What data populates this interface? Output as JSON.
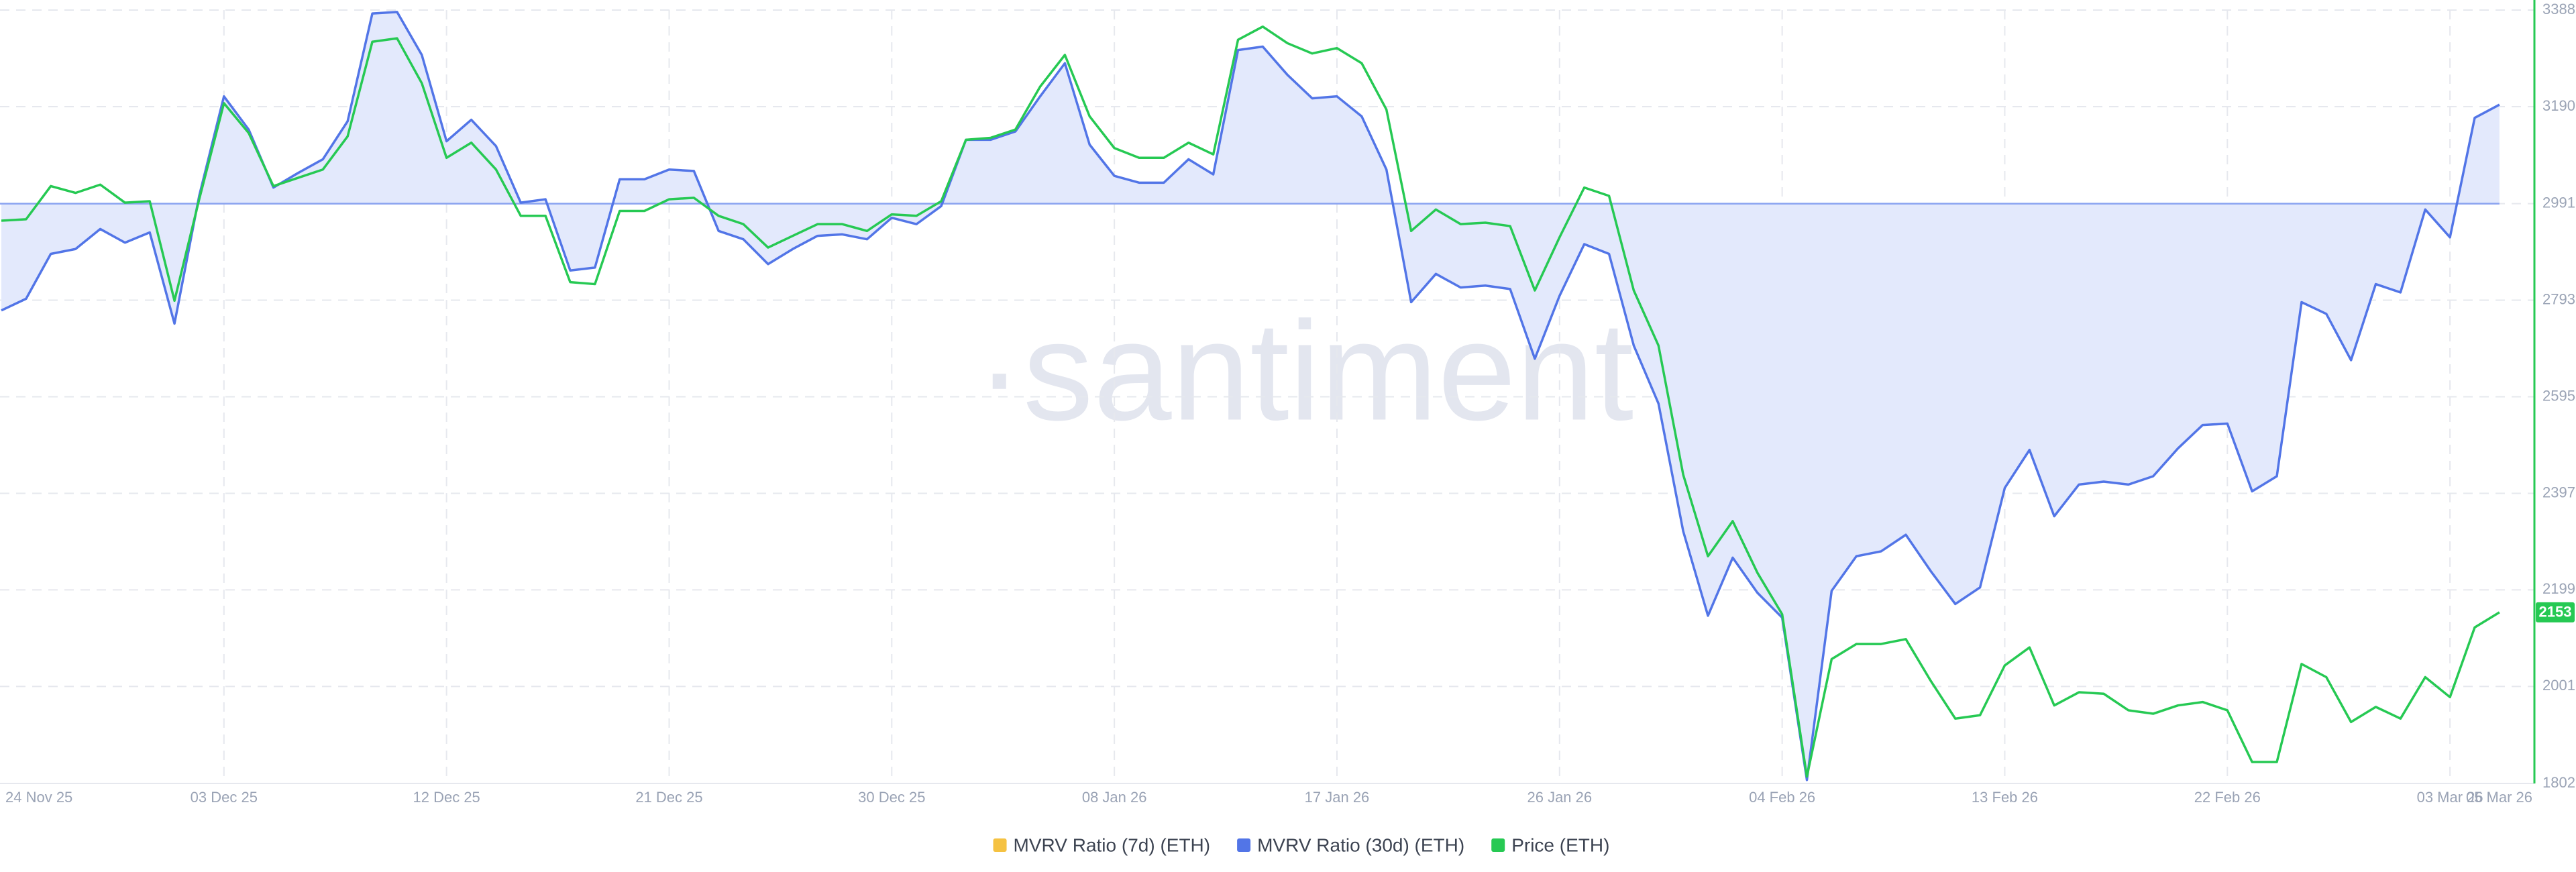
{
  "chart_data": {
    "type": "line",
    "watermark": "·santiment·",
    "categories": [
      "24 Nov 25",
      null,
      null,
      null,
      null,
      null,
      null,
      null,
      null,
      "03 Dec 25",
      null,
      null,
      null,
      null,
      null,
      null,
      null,
      null,
      "12 Dec 25",
      null,
      null,
      null,
      null,
      null,
      null,
      null,
      null,
      "21 Dec 25",
      null,
      null,
      null,
      null,
      null,
      null,
      null,
      null,
      "30 Dec 25",
      null,
      null,
      null,
      null,
      null,
      null,
      null,
      null,
      "08 Jan 26",
      null,
      null,
      null,
      null,
      null,
      null,
      null,
      null,
      "17 Jan 26",
      null,
      null,
      null,
      null,
      null,
      null,
      null,
      null,
      "26 Jan 26",
      null,
      null,
      null,
      null,
      null,
      null,
      null,
      null,
      "04 Feb 26",
      null,
      null,
      null,
      null,
      null,
      null,
      null,
      null,
      "13 Feb 26",
      null,
      null,
      null,
      null,
      null,
      null,
      null,
      null,
      "22 Feb 26",
      null,
      null,
      null,
      null,
      null,
      null,
      null,
      null,
      "03 Mar 26",
      null,
      "05 Mar 26"
    ],
    "series": [
      {
        "name": "MVRV Ratio (7d) (ETH)",
        "color": "#f5c242",
        "values": [
          null,
          null,
          null,
          null,
          null,
          null,
          null,
          null,
          null,
          null,
          null,
          null,
          null,
          null,
          null,
          null,
          null,
          null,
          null,
          null,
          null,
          null,
          null,
          null,
          null,
          null,
          null,
          null,
          null,
          null,
          null,
          null,
          null,
          null,
          null,
          null,
          null,
          null,
          null,
          null,
          null,
          null,
          null,
          null,
          null,
          null,
          null,
          null,
          null,
          null,
          null,
          null,
          null,
          null,
          null,
          null,
          null,
          null,
          null,
          null,
          null,
          null,
          null,
          null,
          null,
          null,
          null,
          null,
          null,
          null,
          null,
          null,
          null,
          null,
          null,
          null,
          null,
          null,
          null,
          null,
          null,
          null,
          null,
          null,
          null,
          null,
          null,
          null,
          null,
          null,
          null,
          null,
          null,
          null,
          null,
          null,
          null,
          null,
          null,
          null,
          null,
          null
        ]
      },
      {
        "name": "MVRV Ratio (30d) (ETH)",
        "color": "#5275e7",
        "area_color": "#e3e9fc",
        "baseline": 2991,
        "values": [
          2772,
          2796,
          2888,
          2898,
          2939,
          2911,
          2932,
          2745,
          3007,
          3211,
          3143,
          3024,
          3054,
          3082,
          3160,
          3381,
          3384,
          3296,
          3119,
          3163,
          3109,
          2993,
          3000,
          2854,
          2860,
          3041,
          3041,
          3061,
          3058,
          2935,
          2918,
          2867,
          2898,
          2925,
          2928,
          2918,
          2962,
          2949,
          2986,
          3122,
          3122,
          3139,
          3211,
          3279,
          3112,
          3048,
          3034,
          3034,
          3082,
          3051,
          3306,
          3313,
          3255,
          3207,
          3211,
          3170,
          3061,
          2789,
          2847,
          2819,
          2823,
          2816,
          2673,
          2802,
          2908,
          2888,
          2700,
          2581,
          2319,
          2146,
          2265,
          2193,
          2142,
          1809,
          2197,
          2268,
          2278,
          2312,
          2238,
          2170,
          2204,
          2408,
          2486,
          2350,
          2415,
          2421,
          2415,
          2432,
          2489,
          2537,
          2540,
          2401,
          2432,
          2789,
          2765,
          2670,
          2826,
          2809,
          2979,
          2922,
          3167,
          3194
        ]
      },
      {
        "name": "Price (ETH)",
        "color": "#26c953",
        "axis": "y2",
        "values": [
          2956,
          2959,
          3027,
          3013,
          3030,
          2993,
          2996,
          2792,
          3000,
          3197,
          3136,
          3027,
          3044,
          3061,
          3129,
          3323,
          3330,
          3238,
          3085,
          3116,
          3061,
          2966,
          2966,
          2830,
          2826,
          2976,
          2976,
          3000,
          3003,
          2966,
          2949,
          2901,
          2925,
          2949,
          2949,
          2935,
          2969,
          2966,
          2996,
          3122,
          3126,
          3143,
          3231,
          3296,
          3170,
          3105,
          3085,
          3085,
          3116,
          3092,
          3327,
          3354,
          3320,
          3299,
          3310,
          3279,
          3184,
          2935,
          2979,
          2949,
          2952,
          2945,
          2813,
          2922,
          3024,
          3007,
          2813,
          2700,
          2435,
          2268,
          2340,
          2234,
          2149,
          1816,
          2057,
          2088,
          2088,
          2098,
          2013,
          1935,
          1942,
          2044,
          2081,
          1962,
          1989,
          1986,
          1952,
          1945,
          1962,
          1969,
          1952,
          1846,
          1846,
          2047,
          2020,
          1928,
          1959,
          1935,
          2020,
          1979,
          2122,
          2153
        ]
      }
    ],
    "y2lim": [
      1802,
      3388
    ],
    "y2ticks": [
      1802,
      2001,
      2199,
      2397,
      2595,
      2793,
      2991,
      3190,
      3388
    ],
    "grid": true,
    "legend": "bottom"
  }
}
